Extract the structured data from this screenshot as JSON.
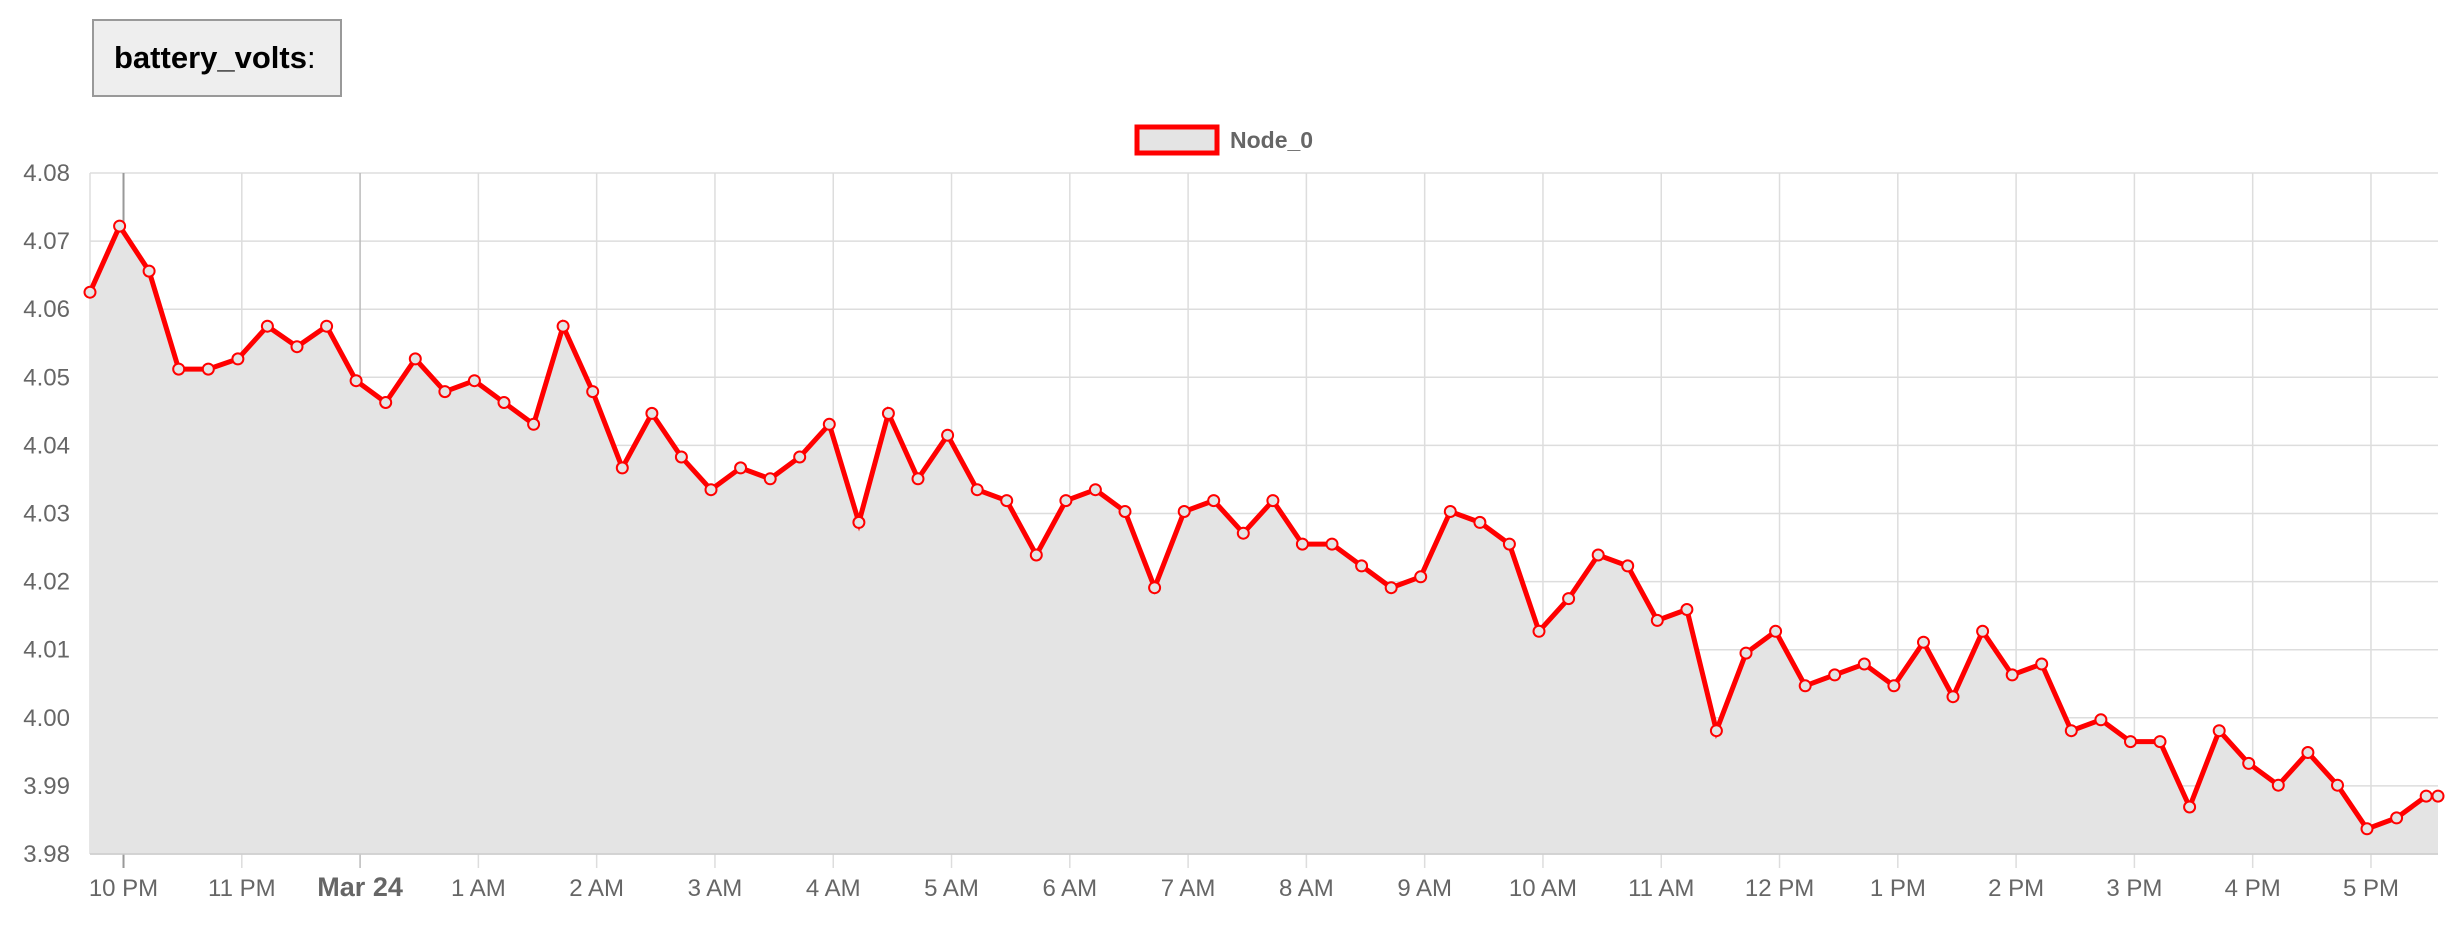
{
  "header": {
    "metric": "battery_volts",
    "suffix": ":"
  },
  "chart_data": {
    "type": "area",
    "colors": {
      "line": "#ff0000",
      "fill": "#e4e4e4",
      "grid": "#dddddd"
    },
    "legend": {
      "placement": "top-center",
      "entries": [
        "Node_0"
      ]
    },
    "ylim": [
      3.98,
      4.08
    ],
    "y_ticks": [
      "4.08",
      "4.07",
      "4.06",
      "4.05",
      "4.04",
      "4.03",
      "4.02",
      "4.01",
      "4.00",
      "3.99",
      "3.98"
    ],
    "xlim": [
      "Mar 23 21:43",
      "Mar 24 17:34"
    ],
    "x_ticks": [
      {
        "label": "10 PM",
        "time": "Mar 23 22:00",
        "major": false
      },
      {
        "label": "11 PM",
        "time": "Mar 23 23:00",
        "major": false
      },
      {
        "label": "Mar 24",
        "time": "Mar 24 00:00",
        "major": true
      },
      {
        "label": "1 AM",
        "time": "Mar 24 01:00",
        "major": false
      },
      {
        "label": "2 AM",
        "time": "Mar 24 02:00",
        "major": false
      },
      {
        "label": "3 AM",
        "time": "Mar 24 03:00",
        "major": false
      },
      {
        "label": "4 AM",
        "time": "Mar 24 04:00",
        "major": false
      },
      {
        "label": "5 AM",
        "time": "Mar 24 05:00",
        "major": false
      },
      {
        "label": "6 AM",
        "time": "Mar 24 06:00",
        "major": false
      },
      {
        "label": "7 AM",
        "time": "Mar 24 07:00",
        "major": false
      },
      {
        "label": "8 AM",
        "time": "Mar 24 08:00",
        "major": false
      },
      {
        "label": "9 AM",
        "time": "Mar 24 09:00",
        "major": false
      },
      {
        "label": "10 AM",
        "time": "Mar 24 10:00",
        "major": false
      },
      {
        "label": "11 AM",
        "time": "Mar 24 11:00",
        "major": false
      },
      {
        "label": "12 PM",
        "time": "Mar 24 12:00",
        "major": false
      },
      {
        "label": "1 PM",
        "time": "Mar 24 13:00",
        "major": false
      },
      {
        "label": "2 PM",
        "time": "Mar 24 14:00",
        "major": false
      },
      {
        "label": "3 PM",
        "time": "Mar 24 15:00",
        "major": false
      },
      {
        "label": "4 PM",
        "time": "Mar 24 16:00",
        "major": false
      },
      {
        "label": "5 PM",
        "time": "Mar 24 17:00",
        "major": false
      }
    ],
    "series": [
      {
        "name": "Node_0",
        "x": [
          "Mar 23 21:43",
          "Mar 23 21:58",
          "Mar 23 22:13",
          "Mar 23 22:28",
          "Mar 23 22:43",
          "Mar 23 22:58",
          "Mar 23 23:13",
          "Mar 23 23:28",
          "Mar 23 23:43",
          "Mar 23 23:58",
          "Mar 24 00:13",
          "Mar 24 00:28",
          "Mar 24 00:43",
          "Mar 24 00:58",
          "Mar 24 01:13",
          "Mar 24 01:28",
          "Mar 24 01:43",
          "Mar 24 01:58",
          "Mar 24 02:13",
          "Mar 24 02:28",
          "Mar 24 02:43",
          "Mar 24 02:58",
          "Mar 24 03:13",
          "Mar 24 03:28",
          "Mar 24 03:43",
          "Mar 24 03:58",
          "Mar 24 04:13",
          "Mar 24 04:28",
          "Mar 24 04:43",
          "Mar 24 04:58",
          "Mar 24 05:13",
          "Mar 24 05:28",
          "Mar 24 05:43",
          "Mar 24 05:58",
          "Mar 24 06:13",
          "Mar 24 06:28",
          "Mar 24 06:43",
          "Mar 24 06:58",
          "Mar 24 07:13",
          "Mar 24 07:28",
          "Mar 24 07:43",
          "Mar 24 07:58",
          "Mar 24 08:13",
          "Mar 24 08:28",
          "Mar 24 08:43",
          "Mar 24 08:58",
          "Mar 24 09:13",
          "Mar 24 09:28",
          "Mar 24 09:43",
          "Mar 24 09:58",
          "Mar 24 10:13",
          "Mar 24 10:28",
          "Mar 24 10:43",
          "Mar 24 10:58",
          "Mar 24 11:13",
          "Mar 24 11:28",
          "Mar 24 11:43",
          "Mar 24 11:58",
          "Mar 24 12:13",
          "Mar 24 12:28",
          "Mar 24 12:43",
          "Mar 24 12:58",
          "Mar 24 13:13",
          "Mar 24 13:28",
          "Mar 24 13:43",
          "Mar 24 13:58",
          "Mar 24 14:13",
          "Mar 24 14:28",
          "Mar 24 14:43",
          "Mar 24 14:58",
          "Mar 24 15:13",
          "Mar 24 15:28",
          "Mar 24 15:43",
          "Mar 24 15:58",
          "Mar 24 16:13",
          "Mar 24 16:28",
          "Mar 24 16:43",
          "Mar 24 16:58",
          "Mar 24 17:13",
          "Mar 24 17:28",
          "Mar 24 17:34"
        ],
        "values": [
          4.0625,
          4.0722,
          4.0656,
          4.0512,
          4.0512,
          4.0527,
          4.0575,
          4.0545,
          4.0575,
          4.0495,
          4.0463,
          4.0527,
          4.0479,
          4.0495,
          4.0463,
          4.0431,
          4.0575,
          4.0479,
          4.0367,
          4.0447,
          4.0383,
          4.0335,
          4.0367,
          4.0351,
          4.0383,
          4.0431,
          4.0287,
          4.0447,
          4.0351,
          4.0415,
          4.0335,
          4.0319,
          4.0239,
          4.0319,
          4.0335,
          4.0303,
          4.0191,
          4.0303,
          4.0319,
          4.0271,
          4.0319,
          4.0255,
          4.0255,
          4.0223,
          4.0191,
          4.0207,
          4.0303,
          4.0287,
          4.0255,
          4.0127,
          4.0175,
          4.0239,
          4.0223,
          4.0143,
          4.0159,
          3.9981,
          4.0095,
          4.0127,
          4.0047,
          4.0063,
          4.0079,
          4.0047,
          4.0111,
          4.0031,
          4.0127,
          4.0063,
          4.0079,
          3.9981,
          3.9997,
          3.9965,
          3.9965,
          3.9869,
          3.9981,
          3.9933,
          3.9901,
          3.9949,
          3.9901,
          3.9837,
          3.9853,
          3.9885,
          3.9885
        ]
      }
    ]
  }
}
